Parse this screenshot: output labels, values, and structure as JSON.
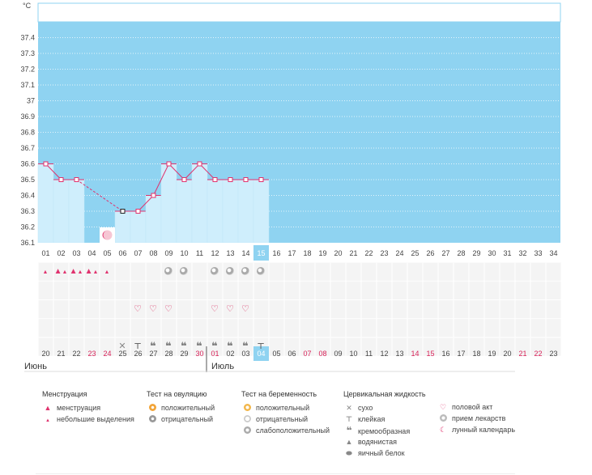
{
  "chart_data": {
    "type": "line",
    "yunit": "°C",
    "ylim": [
      36.1,
      37.5
    ],
    "yticks": [
      36.1,
      36.2,
      36.3,
      36.4,
      36.5,
      36.6,
      36.7,
      36.8,
      36.9,
      37,
      37.1,
      37.2,
      37.3,
      37.4
    ],
    "cycle_days": [
      "01",
      "02",
      "03",
      "04",
      "05",
      "06",
      "07",
      "08",
      "09",
      "10",
      "11",
      "12",
      "13",
      "14",
      "15",
      "16",
      "17",
      "18",
      "19",
      "20",
      "21",
      "22",
      "23",
      "24",
      "25",
      "26",
      "27",
      "28",
      "29",
      "30",
      "31",
      "32",
      "33",
      "34"
    ],
    "highlight_day_index": 14,
    "temperature_points": [
      {
        "day": 1,
        "t": 36.6
      },
      {
        "day": 2,
        "t": 36.5
      },
      {
        "day": 3,
        "t": 36.5
      },
      {
        "day": 6,
        "t": 36.3
      },
      {
        "day": 7,
        "t": 36.3
      },
      {
        "day": 8,
        "t": 36.4
      },
      {
        "day": 9,
        "t": 36.6
      },
      {
        "day": 10,
        "t": 36.5
      },
      {
        "day": 11,
        "t": 36.6
      },
      {
        "day": 12,
        "t": 36.5
      },
      {
        "day": 13,
        "t": 36.5
      },
      {
        "day": 14,
        "t": 36.5
      },
      {
        "day": 15,
        "t": 36.5
      }
    ],
    "dashed_segment": [
      3,
      6
    ],
    "moon_day": 5,
    "date_labels": [
      "20",
      "21",
      "22",
      "23",
      "24",
      "25",
      "26",
      "27",
      "28",
      "29",
      "30",
      "01",
      "02",
      "03",
      "04",
      "05",
      "06",
      "07",
      "08",
      "09",
      "10",
      "11",
      "12",
      "13",
      "14",
      "15",
      "16",
      "17",
      "18",
      "19",
      "20",
      "21",
      "22",
      "23"
    ],
    "red_date_indices": [
      3,
      4,
      10,
      11,
      17,
      18,
      24,
      25,
      31,
      32
    ],
    "highlight_date_index": 14,
    "month_labels": [
      {
        "label": "Июнь",
        "start_index": 0
      },
      {
        "label": "Июль",
        "start_index": 11
      }
    ],
    "row_menstruation": {
      "1": "drop-small",
      "2": "drop-double",
      "3": "drop-double",
      "4": "drop-double",
      "5": "drop-small"
    },
    "row_ovulation": {
      "9": "neg",
      "10": "neg",
      "12": "neg",
      "13": "neg",
      "14": "neg",
      "15": "neg"
    },
    "row_intercourse": {
      "7": "heart",
      "8": "heart",
      "9": "heart",
      "12": "heart",
      "13": "heart",
      "14": "heart"
    },
    "row_fluid": {
      "6": "dry",
      "7": "sticky",
      "8": "creamy",
      "9": "creamy",
      "10": "creamy",
      "11": "creamy",
      "12": "creamy",
      "13": "creamy",
      "14": "creamy",
      "15": "sticky"
    }
  },
  "colors": {
    "plot_bg": "#8fd3f1",
    "bar_fill": "#cfeefc",
    "line": "#e0336e",
    "highlight": "#8fd3f1"
  },
  "legend": {
    "menstruation": {
      "title": "Менструация",
      "items": [
        "менструация",
        "небольшие выделения"
      ]
    },
    "ovulation": {
      "title": "Тест на овуляцию",
      "items": [
        "положительный",
        "отрицательный"
      ]
    },
    "pregnancy": {
      "title": "Тест на беременность",
      "items": [
        "положительный",
        "отрицательный",
        "слабоположительный"
      ]
    },
    "fluid": {
      "title": "Цервикальная жидкость",
      "items": [
        "сухо",
        "клейкая",
        "кремообразная",
        "водянистая",
        "яичный белок"
      ]
    },
    "other": {
      "items": [
        "половой акт",
        "прием лекарств",
        "лунный календарь"
      ]
    }
  }
}
